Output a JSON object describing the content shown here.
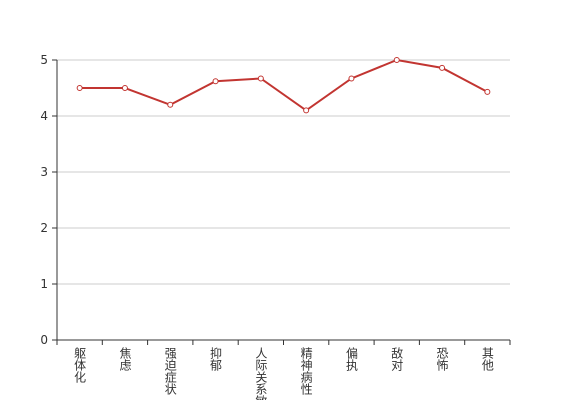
{
  "chart_data": {
    "type": "line",
    "categories": [
      "躯体化",
      "焦虑",
      "强迫症状",
      "抑郁",
      "人际关系敏感",
      "精神病性",
      "偏执",
      "敌对",
      "恐怖",
      "其他"
    ],
    "series": [
      {
        "color": "#c23531",
        "values": [
          4.5,
          4.5,
          4.2,
          4.62,
          4.67,
          4.1,
          4.67,
          5.0,
          4.86,
          4.43
        ]
      }
    ],
    "ylim": [
      0,
      5
    ],
    "yticks": [
      0,
      1,
      2,
      3,
      4,
      5
    ],
    "grid": true
  }
}
